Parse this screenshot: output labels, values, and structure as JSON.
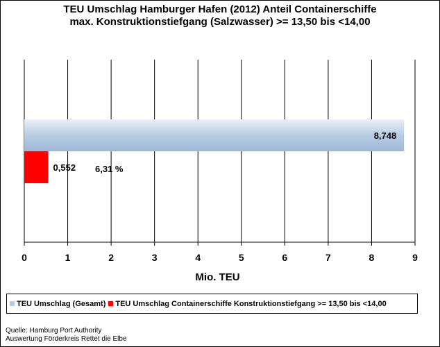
{
  "chart_data": {
    "type": "bar",
    "orientation": "horizontal",
    "title": [
      "TEU Umschlag Hamburger Hafen (2012) Anteil Containerschiffe",
      "max. Konstruktionstiefgang (Salzwasser) >= 13,50 bis <14,00"
    ],
    "xlabel": "Mio. TEU",
    "ylabel": "",
    "xlim": [
      0,
      9
    ],
    "xticks": [
      "0",
      "1",
      "2",
      "3",
      "4",
      "5",
      "6",
      "7",
      "8",
      "9"
    ],
    "grid": "vertical",
    "legend_position": "bottom",
    "series": [
      {
        "name": "TEU Umschlag (Gesamt)",
        "value": 8.748,
        "label": "8,748",
        "color": "#b8cce4"
      },
      {
        "name": "TEU Umschlag Containerschiffe Konstruktionstiefgang >= 13,50 bis <14,00",
        "value": 0.552,
        "label": "0,552",
        "color": "#ff0000"
      }
    ],
    "annotation": "6,31 %"
  },
  "source": {
    "line1": "Quelle: Hamburg Port Authority",
    "line2": "Auswertung Förderkreis Rettet die Elbe"
  }
}
